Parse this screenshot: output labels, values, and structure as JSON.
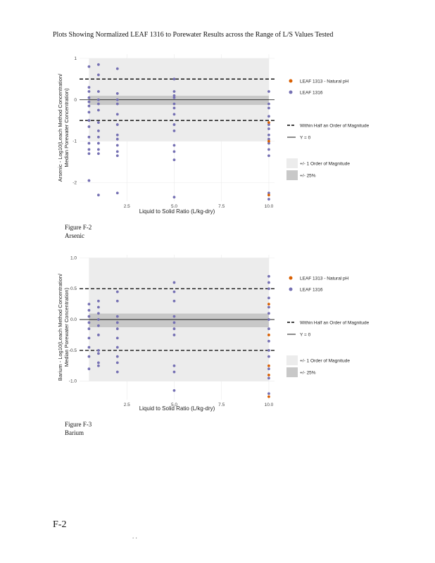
{
  "page": {
    "title": "Plots Showing Normalized LEAF 1316 to Porewater Results across the Range of L/S Values Tested",
    "page_number": "F-2",
    "footer_mark": ". ."
  },
  "chart_data": [
    {
      "type": "scatter",
      "figure_label": "Figure F-2",
      "figure_caption": "Arsenic",
      "xlabel": "Liquid to Solid Ratio (L/kg-dry)",
      "ylabel_line1": "Arsenic - Log10(Leach Method Concentration/",
      "ylabel_line2": "Median Porewater Concentration)",
      "xlim": [
        0,
        10.3
      ],
      "ylim": [
        -2.45,
        1.1
      ],
      "x_ticks": [
        2.5,
        5.0,
        7.5,
        10.0
      ],
      "x_tick_labels": [
        "2.5",
        "5.0",
        "7.5",
        "10.0"
      ],
      "y_ticks": [
        1,
        0,
        -1,
        -2
      ],
      "y_tick_labels": [
        "1",
        "0",
        "-1",
        "-2"
      ],
      "bands": {
        "order_of_magnitude": [
          -1,
          1
        ],
        "pct25": [
          -0.125,
          0.097
        ],
        "half_order": [
          -0.5,
          0.5
        ],
        "y0": 0,
        "shade_x": [
          0.5,
          10.0
        ]
      },
      "legend": {
        "series": [
          {
            "name": "LEAF 1313 - Natural pH",
            "color": "#d95f02"
          },
          {
            "name": "LEAF 1316",
            "color": "#7570b3"
          }
        ],
        "lines": [
          {
            "name": "Within Half an Order of Magnitude",
            "style": "dashed"
          },
          {
            "name": "Y = 0",
            "style": "solid"
          }
        ],
        "fills": [
          {
            "name": "+/- 1 Order of Magnitude",
            "color": "#ececec"
          },
          {
            "name": "+/- 25%",
            "color": "#c8c8c8"
          }
        ]
      },
      "series": [
        {
          "name": "LEAF 1316",
          "points": [
            [
              0.5,
              0.8
            ],
            [
              0.5,
              0.3
            ],
            [
              0.5,
              0.2
            ],
            [
              0.5,
              0.05
            ],
            [
              0.5,
              -0.05
            ],
            [
              0.5,
              -0.15
            ],
            [
              0.5,
              -0.3
            ],
            [
              0.5,
              -0.5
            ],
            [
              0.5,
              -0.65
            ],
            [
              0.5,
              -0.9
            ],
            [
              0.5,
              -1.05
            ],
            [
              0.5,
              -1.2
            ],
            [
              0.5,
              -1.3
            ],
            [
              0.5,
              -1.95
            ],
            [
              1.0,
              0.85
            ],
            [
              1.0,
              0.6
            ],
            [
              1.0,
              0.2
            ],
            [
              1.0,
              0.0
            ],
            [
              1.0,
              -0.1
            ],
            [
              1.0,
              -0.25
            ],
            [
              1.0,
              -0.55
            ],
            [
              1.0,
              -0.75
            ],
            [
              1.0,
              -0.9
            ],
            [
              1.0,
              -1.05
            ],
            [
              1.0,
              -1.2
            ],
            [
              1.0,
              -1.3
            ],
            [
              1.0,
              -2.3
            ],
            [
              2.0,
              0.75
            ],
            [
              2.0,
              0.15
            ],
            [
              2.0,
              0.0
            ],
            [
              2.0,
              -0.1
            ],
            [
              2.0,
              -0.35
            ],
            [
              2.0,
              -0.6
            ],
            [
              2.0,
              -0.85
            ],
            [
              2.0,
              -0.95
            ],
            [
              2.0,
              -1.1
            ],
            [
              2.0,
              -1.25
            ],
            [
              2.0,
              -1.35
            ],
            [
              2.0,
              -2.25
            ],
            [
              5.0,
              0.5
            ],
            [
              5.0,
              0.2
            ],
            [
              5.0,
              0.1
            ],
            [
              5.0,
              0.05
            ],
            [
              5.0,
              -0.1
            ],
            [
              5.0,
              -0.2
            ],
            [
              5.0,
              -0.35
            ],
            [
              5.0,
              -0.6
            ],
            [
              5.0,
              -0.75
            ],
            [
              5.0,
              -1.1
            ],
            [
              5.0,
              -1.25
            ],
            [
              5.0,
              -1.45
            ],
            [
              5.0,
              -2.35
            ],
            [
              10.0,
              0.2
            ],
            [
              10.0,
              -0.1
            ],
            [
              10.0,
              -0.2
            ],
            [
              10.0,
              -0.4
            ],
            [
              10.0,
              -0.6
            ],
            [
              10.0,
              -0.7
            ],
            [
              10.0,
              -0.85
            ],
            [
              10.0,
              -0.95
            ],
            [
              10.0,
              -1.05
            ],
            [
              10.0,
              -1.2
            ],
            [
              10.0,
              -1.35
            ],
            [
              10.0,
              -2.25
            ],
            [
              10.0,
              -2.4
            ]
          ]
        },
        {
          "name": "LEAF 1313 - Natural pH",
          "points": [
            [
              10.0,
              -0.55
            ],
            [
              10.0,
              -1.0
            ],
            [
              10.0,
              -2.3
            ]
          ]
        }
      ]
    },
    {
      "type": "scatter",
      "figure_label": "Figure F-3",
      "figure_caption": "Barium",
      "xlabel": "Liquid to Solid Ratio (L/kg-dry)",
      "ylabel_line1": "Barium - Log10(Leach Method Concentration/",
      "ylabel_line2": "Median Porewater Concentration)",
      "xlim": [
        0,
        10.3
      ],
      "ylim": [
        -1.3,
        1.05
      ],
      "x_ticks": [
        2.5,
        5.0,
        7.5,
        10.0
      ],
      "x_tick_labels": [
        "2.5",
        "5.0",
        "7.5",
        "10.0"
      ],
      "y_ticks": [
        1.0,
        0.5,
        0.0,
        -0.5,
        -1.0
      ],
      "y_tick_labels": [
        "1.0",
        "0.5",
        "0.0",
        "-0.5",
        "-1.0"
      ],
      "bands": {
        "order_of_magnitude": [
          -1,
          1
        ],
        "pct25": [
          -0.125,
          0.097
        ],
        "half_order": [
          -0.5,
          0.5
        ],
        "y0": 0,
        "shade_x": [
          0.5,
          10.0
        ]
      },
      "legend": {
        "series": [
          {
            "name": "LEAF 1313 - Natural pH",
            "color": "#d95f02"
          },
          {
            "name": "LEAF 1316",
            "color": "#7570b3"
          }
        ],
        "lines": [
          {
            "name": "Within Half an Order of Magnitude",
            "style": "dashed"
          },
          {
            "name": "Y = 0",
            "style": "solid"
          }
        ],
        "fills": [
          {
            "name": "+/- 1 Order of Magnitude",
            "color": "#ececec"
          },
          {
            "name": "+/- 25%",
            "color": "#c8c8c8"
          }
        ]
      },
      "series": [
        {
          "name": "LEAF 1316",
          "points": [
            [
              0.5,
              0.25
            ],
            [
              0.5,
              0.15
            ],
            [
              0.5,
              0.05
            ],
            [
              0.5,
              -0.05
            ],
            [
              0.5,
              -0.15
            ],
            [
              0.5,
              -0.3
            ],
            [
              0.5,
              -0.45
            ],
            [
              0.5,
              -0.6
            ],
            [
              0.5,
              -0.8
            ],
            [
              1.0,
              0.3
            ],
            [
              1.0,
              0.2
            ],
            [
              1.0,
              0.1
            ],
            [
              1.0,
              0.0
            ],
            [
              1.0,
              -0.1
            ],
            [
              1.0,
              -0.25
            ],
            [
              1.0,
              -0.5
            ],
            [
              1.0,
              -0.55
            ],
            [
              1.0,
              -0.7
            ],
            [
              1.0,
              -0.75
            ],
            [
              2.0,
              0.45
            ],
            [
              2.0,
              0.3
            ],
            [
              2.0,
              0.05
            ],
            [
              2.0,
              -0.05
            ],
            [
              2.0,
              -0.15
            ],
            [
              2.0,
              -0.3
            ],
            [
              2.0,
              -0.45
            ],
            [
              2.0,
              -0.6
            ],
            [
              2.0,
              -0.7
            ],
            [
              2.0,
              -0.85
            ],
            [
              5.0,
              0.6
            ],
            [
              5.0,
              0.45
            ],
            [
              5.0,
              0.3
            ],
            [
              5.0,
              0.05
            ],
            [
              5.0,
              -0.05
            ],
            [
              5.0,
              -0.15
            ],
            [
              5.0,
              -0.25
            ],
            [
              5.0,
              -0.75
            ],
            [
              5.0,
              -0.85
            ],
            [
              5.0,
              -1.15
            ],
            [
              10.0,
              0.7
            ],
            [
              10.0,
              0.6
            ],
            [
              10.0,
              0.5
            ],
            [
              10.0,
              0.35
            ],
            [
              10.0,
              0.2
            ],
            [
              10.0,
              0.1
            ],
            [
              10.0,
              0.0
            ],
            [
              10.0,
              -0.15
            ],
            [
              10.0,
              -0.35
            ],
            [
              10.0,
              -0.5
            ],
            [
              10.0,
              -0.6
            ],
            [
              10.0,
              -0.8
            ],
            [
              10.0,
              -0.95
            ],
            [
              10.0,
              -1.2
            ]
          ]
        },
        {
          "name": "LEAF 1313 - Natural pH",
          "points": [
            [
              10.0,
              0.25
            ],
            [
              10.0,
              -0.25
            ],
            [
              10.0,
              -0.75
            ],
            [
              10.0,
              -0.9
            ],
            [
              10.0,
              -1.25
            ]
          ]
        }
      ]
    }
  ]
}
